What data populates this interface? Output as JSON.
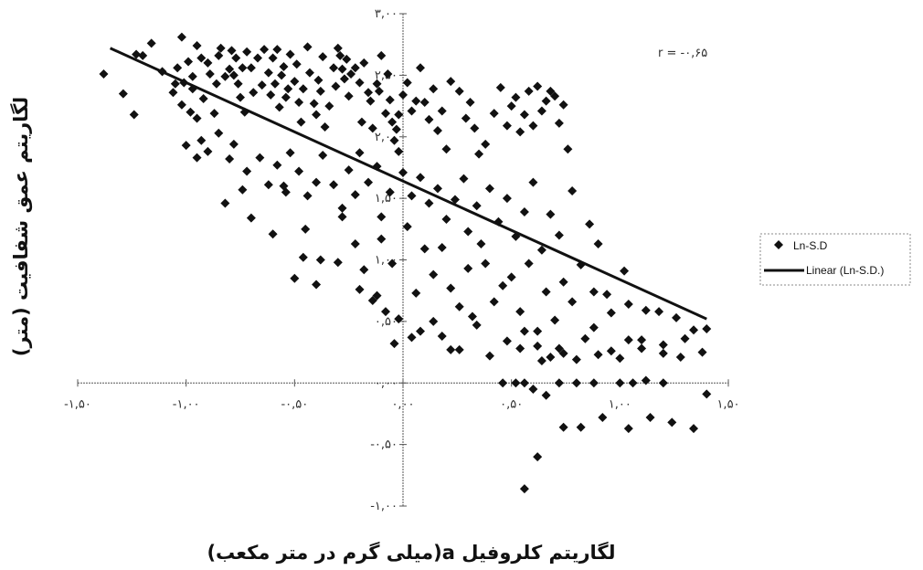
{
  "chart_data": {
    "type": "scatter",
    "title": "",
    "xlabel": "لگاریتم کلروفیل a(میلی گرم در متر مکعب)",
    "ylabel": "لگاریتم عمق شفافیت (متر)",
    "xlim": [
      -1.5,
      1.5
    ],
    "ylim": [
      -1.0,
      3.0
    ],
    "x_ticks": [
      -1.5,
      -1.0,
      -0.5,
      0.0,
      0.5,
      1.0,
      1.5
    ],
    "x_tick_labels": [
      "-۱,۵۰",
      "-۱,۰۰",
      "-۰,۵۰",
      "۰,۰۰",
      "۰,۵۰",
      "۱,۰۰",
      "۱,۵۰"
    ],
    "y_ticks": [
      -1.0,
      -0.5,
      0.0,
      0.5,
      1.0,
      1.5,
      2.0,
      2.5,
      3.0
    ],
    "y_tick_labels": [
      "-۱,۰۰",
      "-۰,۵۰",
      "۰,۰۰",
      "۰,۵۰",
      "۱,۰۰",
      "۱,۵۰",
      "۲,۰۰",
      "۲,۵۰",
      "۳,۰۰"
    ],
    "annotation": "r = -۰,۶۵",
    "legend": {
      "placement": "right",
      "entries": [
        "Ln-S.D",
        "Linear (Ln-S.D.)"
      ]
    },
    "grid": false,
    "series": [
      {
        "name": "Ln-S.D",
        "marker": "diamond",
        "color": "#111111",
        "points": [
          [
            -1.38,
            2.51
          ],
          [
            -1.29,
            2.35
          ],
          [
            -1.24,
            2.18
          ],
          [
            -1.23,
            2.67
          ],
          [
            -1.2,
            2.66
          ],
          [
            -1.16,
            2.76
          ],
          [
            -1.11,
            2.53
          ],
          [
            -1.06,
            2.36
          ],
          [
            -1.05,
            2.43
          ],
          [
            -1.04,
            2.56
          ],
          [
            -1.02,
            2.81
          ],
          [
            -1.02,
            2.26
          ],
          [
            -1.01,
            2.44
          ],
          [
            -0.99,
            2.61
          ],
          [
            -0.98,
            2.2
          ],
          [
            -0.97,
            2.39
          ],
          [
            -0.97,
            2.49
          ],
          [
            -0.95,
            2.74
          ],
          [
            -0.95,
            2.15
          ],
          [
            -0.93,
            2.64
          ],
          [
            -0.92,
            2.31
          ],
          [
            -0.9,
            2.6
          ],
          [
            -0.89,
            2.51
          ],
          [
            -0.87,
            2.19
          ],
          [
            -0.86,
            2.43
          ],
          [
            -0.85,
            2.66
          ],
          [
            -0.84,
            2.72
          ],
          [
            -0.82,
            2.49
          ],
          [
            -0.8,
            2.55
          ],
          [
            -0.79,
            2.7
          ],
          [
            -0.78,
            2.5
          ],
          [
            -0.77,
            2.64
          ],
          [
            -0.76,
            2.43
          ],
          [
            -0.75,
            2.32
          ],
          [
            -0.74,
            2.56
          ],
          [
            -0.73,
            2.2
          ],
          [
            -0.72,
            2.69
          ],
          [
            -0.7,
            2.56
          ],
          [
            -0.69,
            2.36
          ],
          [
            -0.67,
            2.64
          ],
          [
            -0.65,
            2.42
          ],
          [
            -0.64,
            2.71
          ],
          [
            -0.62,
            2.52
          ],
          [
            -0.61,
            2.34
          ],
          [
            -0.6,
            2.64
          ],
          [
            -0.59,
            2.43
          ],
          [
            -0.58,
            2.71
          ],
          [
            -0.57,
            2.24
          ],
          [
            -0.56,
            2.5
          ],
          [
            -0.55,
            2.57
          ],
          [
            -0.54,
            2.32
          ],
          [
            -0.53,
            2.39
          ],
          [
            -0.52,
            2.67
          ],
          [
            -0.5,
            2.45
          ],
          [
            -0.49,
            2.59
          ],
          [
            -0.48,
            2.28
          ],
          [
            -0.47,
            2.12
          ],
          [
            -0.46,
            2.39
          ],
          [
            -0.44,
            2.73
          ],
          [
            -0.43,
            2.52
          ],
          [
            -0.41,
            2.27
          ],
          [
            -0.4,
            2.18
          ],
          [
            -0.39,
            2.46
          ],
          [
            -0.38,
            2.37
          ],
          [
            -0.37,
            2.65
          ],
          [
            -0.36,
            2.08
          ],
          [
            -0.34,
            2.25
          ],
          [
            -0.32,
            2.56
          ],
          [
            -0.31,
            2.41
          ],
          [
            -0.3,
            2.72
          ],
          [
            -0.29,
            2.66
          ],
          [
            -0.28,
            2.55
          ],
          [
            -0.27,
            2.47
          ],
          [
            -0.26,
            2.63
          ],
          [
            -0.25,
            2.33
          ],
          [
            -0.24,
            2.51
          ],
          [
            -0.22,
            2.56
          ],
          [
            -0.2,
            2.44
          ],
          [
            -0.19,
            2.12
          ],
          [
            -0.18,
            2.6
          ],
          [
            -0.16,
            2.36
          ],
          [
            -0.15,
            2.29
          ],
          [
            -0.14,
            2.07
          ],
          [
            -0.12,
            2.43
          ],
          [
            -0.11,
            2.37
          ],
          [
            -0.1,
            2.66
          ],
          [
            -0.08,
            2.19
          ],
          [
            -0.07,
            2.51
          ],
          [
            -0.06,
            2.3
          ],
          [
            -0.05,
            2.12
          ],
          [
            -0.04,
            1.97
          ],
          [
            -0.03,
            2.06
          ],
          [
            -0.02,
            2.18
          ],
          [
            0.0,
            2.34
          ],
          [
            0.02,
            2.44
          ],
          [
            0.04,
            2.21
          ],
          [
            0.06,
            2.29
          ],
          [
            0.08,
            2.56
          ],
          [
            0.1,
            2.28
          ],
          [
            0.12,
            2.14
          ],
          [
            0.14,
            2.39
          ],
          [
            0.16,
            2.05
          ],
          [
            0.18,
            2.21
          ],
          [
            0.2,
            1.9
          ],
          [
            0.22,
            2.45
          ],
          [
            0.26,
            2.37
          ],
          [
            0.29,
            2.15
          ],
          [
            0.31,
            2.28
          ],
          [
            0.33,
            2.07
          ],
          [
            0.35,
            1.86
          ],
          [
            0.38,
            1.94
          ],
          [
            0.42,
            2.19
          ],
          [
            0.45,
            2.4
          ],
          [
            0.48,
            2.09
          ],
          [
            0.5,
            2.25
          ],
          [
            0.52,
            2.32
          ],
          [
            0.54,
            2.04
          ],
          [
            0.56,
            2.18
          ],
          [
            0.58,
            2.37
          ],
          [
            0.6,
            2.09
          ],
          [
            0.62,
            2.41
          ],
          [
            0.64,
            2.21
          ],
          [
            0.66,
            2.29
          ],
          [
            0.68,
            2.37
          ],
          [
            0.7,
            2.33
          ],
          [
            0.72,
            2.11
          ],
          [
            0.74,
            2.26
          ],
          [
            0.76,
            1.9
          ],
          [
            -1.0,
            1.93
          ],
          [
            -0.95,
            1.83
          ],
          [
            -0.93,
            1.97
          ],
          [
            -0.9,
            1.88
          ],
          [
            -0.85,
            2.03
          ],
          [
            -0.8,
            1.82
          ],
          [
            -0.78,
            1.94
          ],
          [
            -0.74,
            1.57
          ],
          [
            -0.72,
            1.72
          ],
          [
            -0.66,
            1.83
          ],
          [
            -0.62,
            1.61
          ],
          [
            -0.58,
            1.77
          ],
          [
            -0.55,
            1.6
          ],
          [
            -0.52,
            1.87
          ],
          [
            -0.48,
            1.72
          ],
          [
            -0.44,
            1.52
          ],
          [
            -0.4,
            1.63
          ],
          [
            -0.37,
            1.85
          ],
          [
            -0.32,
            1.61
          ],
          [
            -0.28,
            1.42
          ],
          [
            -0.25,
            1.73
          ],
          [
            -0.22,
            1.53
          ],
          [
            -0.2,
            1.87
          ],
          [
            -0.16,
            1.63
          ],
          [
            -0.12,
            1.76
          ],
          [
            -0.1,
            1.35
          ],
          [
            -0.06,
            1.55
          ],
          [
            -0.02,
            1.88
          ],
          [
            0.0,
            1.71
          ],
          [
            0.04,
            1.52
          ],
          [
            0.08,
            1.67
          ],
          [
            0.12,
            1.46
          ],
          [
            0.16,
            1.58
          ],
          [
            0.2,
            1.33
          ],
          [
            0.24,
            1.49
          ],
          [
            0.28,
            1.66
          ],
          [
            0.3,
            1.23
          ],
          [
            0.34,
            1.44
          ],
          [
            0.36,
            1.13
          ],
          [
            0.4,
            1.58
          ],
          [
            0.44,
            1.31
          ],
          [
            0.48,
            1.5
          ],
          [
            0.52,
            1.19
          ],
          [
            0.56,
            1.39
          ],
          [
            0.6,
            1.63
          ],
          [
            0.64,
            1.08
          ],
          [
            0.68,
            1.37
          ],
          [
            0.72,
            1.2
          ],
          [
            0.78,
            1.56
          ],
          [
            0.82,
            0.96
          ],
          [
            0.86,
            1.29
          ],
          [
            0.9,
            1.13
          ],
          [
            0.94,
            0.72
          ],
          [
            1.02,
            0.91
          ],
          [
            -0.82,
            1.46
          ],
          [
            -0.7,
            1.34
          ],
          [
            -0.6,
            1.21
          ],
          [
            -0.54,
            1.55
          ],
          [
            -0.45,
            1.25
          ],
          [
            -0.38,
            1.0
          ],
          [
            -0.28,
            1.35
          ],
          [
            -0.22,
            1.13
          ],
          [
            -0.18,
            0.92
          ],
          [
            -0.1,
            1.17
          ],
          [
            -0.05,
            0.97
          ],
          [
            0.02,
            1.27
          ],
          [
            0.06,
            0.73
          ],
          [
            0.1,
            1.09
          ],
          [
            0.14,
            0.88
          ],
          [
            0.18,
            1.1
          ],
          [
            0.22,
            0.77
          ],
          [
            0.26,
            0.62
          ],
          [
            0.3,
            0.93
          ],
          [
            0.34,
            0.47
          ],
          [
            0.38,
            0.97
          ],
          [
            0.42,
            0.66
          ],
          [
            0.46,
            0.79
          ],
          [
            0.5,
            0.86
          ],
          [
            0.54,
            0.58
          ],
          [
            0.58,
            0.97
          ],
          [
            0.62,
            0.42
          ],
          [
            0.66,
            0.74
          ],
          [
            0.7,
            0.51
          ],
          [
            0.74,
            0.82
          ],
          [
            0.78,
            0.66
          ],
          [
            0.84,
            0.36
          ],
          [
            0.88,
            0.74
          ],
          [
            0.96,
            0.57
          ],
          [
            1.04,
            0.64
          ],
          [
            1.12,
            0.59
          ],
          [
            1.2,
            0.31
          ],
          [
            1.3,
            0.36
          ],
          [
            1.4,
            0.44
          ],
          [
            -0.12,
            0.71
          ],
          [
            -0.08,
            0.58
          ],
          [
            -0.04,
            0.32
          ],
          [
            -0.02,
            0.52
          ],
          [
            0.04,
            0.37
          ],
          [
            0.08,
            0.42
          ],
          [
            0.14,
            0.5
          ],
          [
            0.18,
            0.38
          ],
          [
            0.22,
            0.27
          ],
          [
            0.26,
            0.27
          ],
          [
            0.32,
            0.54
          ],
          [
            0.4,
            0.22
          ],
          [
            0.48,
            0.34
          ],
          [
            0.56,
            0.42
          ],
          [
            0.64,
            0.18
          ],
          [
            0.72,
            0.28
          ],
          [
            0.8,
            0.19
          ],
          [
            0.88,
            0.45
          ],
          [
            0.96,
            0.26
          ],
          [
            1.04,
            0.35
          ],
          [
            1.1,
            0.35
          ],
          [
            1.18,
            0.58
          ],
          [
            1.26,
            0.53
          ],
          [
            1.34,
            0.43
          ],
          [
            0.46,
            0.0
          ],
          [
            0.52,
            0.0
          ],
          [
            0.6,
            -0.05
          ],
          [
            0.66,
            -0.1
          ],
          [
            0.72,
            0.0
          ],
          [
            0.8,
            0.0
          ],
          [
            0.88,
            0.0
          ],
          [
            1.0,
            0.0
          ],
          [
            1.06,
            0.0
          ],
          [
            1.12,
            0.02
          ],
          [
            1.2,
            0.0
          ],
          [
            0.54,
            0.28
          ],
          [
            0.56,
            0.0
          ],
          [
            0.62,
            0.3
          ],
          [
            0.68,
            0.21
          ],
          [
            0.74,
            0.24
          ],
          [
            0.9,
            0.23
          ],
          [
            1.0,
            0.2
          ],
          [
            1.1,
            0.28
          ],
          [
            1.2,
            0.24
          ],
          [
            1.28,
            0.21
          ],
          [
            1.38,
            0.25
          ],
          [
            0.74,
            -0.36
          ],
          [
            0.82,
            -0.36
          ],
          [
            0.92,
            -0.28
          ],
          [
            1.04,
            -0.37
          ],
          [
            1.14,
            -0.28
          ],
          [
            1.24,
            -0.32
          ],
          [
            1.34,
            -0.37
          ],
          [
            1.4,
            -0.09
          ],
          [
            0.62,
            -0.6
          ],
          [
            0.56,
            -0.86
          ],
          [
            -0.46,
            1.02
          ],
          [
            -0.3,
            0.98
          ],
          [
            -0.5,
            0.85
          ],
          [
            -0.4,
            0.8
          ],
          [
            -0.2,
            0.76
          ],
          [
            -0.14,
            0.67
          ]
        ]
      },
      {
        "name": "Linear (Ln-S.D.)",
        "line": true,
        "color": "#111111",
        "points": [
          [
            -1.35,
            2.72
          ],
          [
            1.4,
            0.52
          ]
        ]
      }
    ]
  }
}
